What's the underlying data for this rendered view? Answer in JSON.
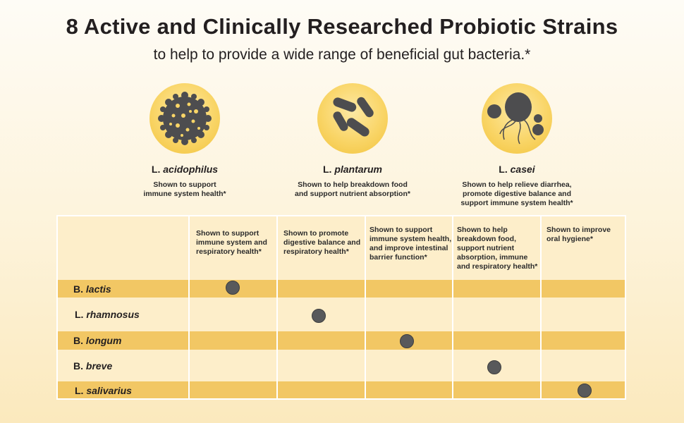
{
  "header": {
    "title": "8 Active and Clinically Researched Probiotic Strains",
    "subtitle": "to help to provide a wide range of beneficial gut bacteria.*"
  },
  "strains": [
    {
      "prefix": "L.",
      "species": "acidophilus",
      "desc": [
        "Shown to support",
        "immune system health*"
      ],
      "icon": "coccus-cluster-icon"
    },
    {
      "prefix": "L.",
      "species": "plantarum",
      "desc": [
        "Shown to help breakdown food",
        "and support nutrient absorption*"
      ],
      "icon": "rod-bacteria-icon"
    },
    {
      "prefix": "L.",
      "species": "casei",
      "desc": [
        "Shown to help relieve diarrhea,",
        "promote digestive balance and",
        "support immune system health*"
      ],
      "icon": "flagellated-bacteria-icon"
    }
  ],
  "table": {
    "columns": [
      [
        "Shown to support",
        "immune system and",
        "respiratory health*"
      ],
      [
        "Shown to promote",
        "digestive balance and",
        "respiratory health*"
      ],
      [
        "Shown to support",
        "immune system health,",
        "and improve intestinal",
        "barrier function*"
      ],
      [
        "Shown to help",
        "breakdown food,",
        "support nutrient",
        "absorption, immune",
        "and respiratory health*"
      ],
      [
        "Shown to improve",
        "oral hygiene*"
      ]
    ],
    "rows": [
      {
        "prefix": "B.",
        "species": "lactis",
        "benefit_column": 0
      },
      {
        "prefix": "L.",
        "species": "rhamnosus",
        "benefit_column": 1
      },
      {
        "prefix": "B.",
        "species": "longum",
        "benefit_column": 2
      },
      {
        "prefix": "B.",
        "species": "breve",
        "benefit_column": 3
      },
      {
        "prefix": "L.",
        "species": "salivarius",
        "benefit_column": 4
      }
    ]
  },
  "colors": {
    "band": "#f2c764",
    "cell": "#fdeeca",
    "dot": "#58595b",
    "icon_fill": "#f9d567"
  }
}
